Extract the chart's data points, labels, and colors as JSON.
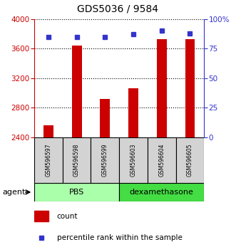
{
  "title": "GDS5036 / 9584",
  "samples": [
    "GSM596597",
    "GSM596598",
    "GSM596599",
    "GSM596603",
    "GSM596604",
    "GSM596605"
  ],
  "counts": [
    2560,
    3640,
    2920,
    3060,
    3730,
    3730
  ],
  "percentile_ranks": [
    85,
    85,
    85,
    87,
    90,
    88
  ],
  "ylim_left": [
    2400,
    4000
  ],
  "ylim_right": [
    0,
    100
  ],
  "left_ticks": [
    2400,
    2800,
    3200,
    3600,
    4000
  ],
  "right_ticks": [
    0,
    25,
    50,
    75,
    100
  ],
  "right_tick_labels": [
    "0",
    "25",
    "50",
    "75",
    "100%"
  ],
  "bar_color": "#cc0000",
  "dot_color": "#3333cc",
  "bar_width": 0.35,
  "pbs_color": "#aaffaa",
  "dex_color": "#44dd44",
  "pbs_label": "PBS",
  "dex_label": "dexamethasone",
  "agent_label": "agent",
  "legend_count_label": "count",
  "legend_percentile_label": "percentile rank within the sample",
  "axis_label_color_left": "#cc0000",
  "axis_label_color_right": "#3333cc",
  "label_box_color": "#d3d3d3"
}
